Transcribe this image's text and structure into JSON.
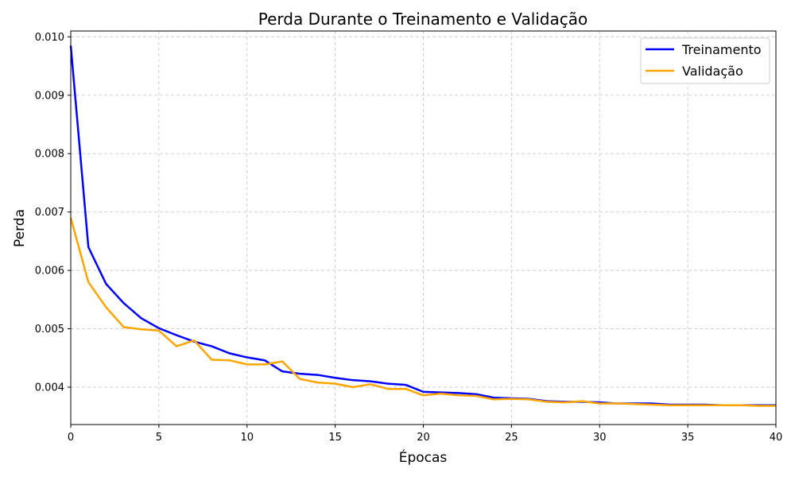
{
  "chart_data": {
    "type": "line",
    "title": "Perda Durante o Treinamento e Validação",
    "xlabel": "Épocas",
    "ylabel": "Perda",
    "xlim": [
      0,
      40
    ],
    "ylim": [
      0.00336,
      0.0101
    ],
    "xticks": [
      0,
      5,
      10,
      15,
      20,
      25,
      30,
      35,
      40
    ],
    "yticks": [
      0.004,
      0.005,
      0.006,
      0.007,
      0.008,
      0.009,
      0.01
    ],
    "xtick_labels": [
      "0",
      "5",
      "10",
      "15",
      "20",
      "25",
      "30",
      "35",
      "40"
    ],
    "ytick_labels": [
      "0.004",
      "0.005",
      "0.006",
      "0.007",
      "0.008",
      "0.009",
      "0.010"
    ],
    "grid": true,
    "legend_position": "top-right",
    "x": [
      0,
      1,
      2,
      3,
      4,
      5,
      6,
      7,
      8,
      9,
      10,
      11,
      12,
      13,
      14,
      15,
      16,
      17,
      18,
      19,
      20,
      21,
      22,
      23,
      24,
      25,
      26,
      27,
      28,
      29,
      30,
      31,
      32,
      33,
      34,
      35,
      36,
      37,
      38,
      39,
      40
    ],
    "series": [
      {
        "name": "Treinamento",
        "color": "#0000ff",
        "values": [
          0.00985,
          0.0064,
          0.00577,
          0.00544,
          0.00518,
          0.00501,
          0.00489,
          0.00478,
          0.0047,
          0.00458,
          0.00451,
          0.00446,
          0.00427,
          0.00423,
          0.00421,
          0.00416,
          0.00412,
          0.0041,
          0.00406,
          0.00404,
          0.00392,
          0.00391,
          0.0039,
          0.00388,
          0.00382,
          0.00381,
          0.0038,
          0.00376,
          0.00375,
          0.00375,
          0.00374,
          0.00372,
          0.00372,
          0.00372,
          0.0037,
          0.0037,
          0.0037,
          0.00369,
          0.00369,
          0.00369,
          0.00369
        ]
      },
      {
        "name": "Validação",
        "color": "#ffa500",
        "values": [
          0.0069,
          0.0058,
          0.00537,
          0.00503,
          0.00499,
          0.00497,
          0.0047,
          0.0048,
          0.00447,
          0.00446,
          0.00439,
          0.00439,
          0.00444,
          0.00414,
          0.00408,
          0.00406,
          0.004,
          0.00405,
          0.00397,
          0.00397,
          0.00386,
          0.00389,
          0.00386,
          0.00385,
          0.00379,
          0.0038,
          0.00379,
          0.00375,
          0.00374,
          0.00376,
          0.00372,
          0.00372,
          0.00371,
          0.0037,
          0.00369,
          0.00369,
          0.00369,
          0.00369,
          0.00369,
          0.00368,
          0.00368
        ]
      }
    ]
  }
}
